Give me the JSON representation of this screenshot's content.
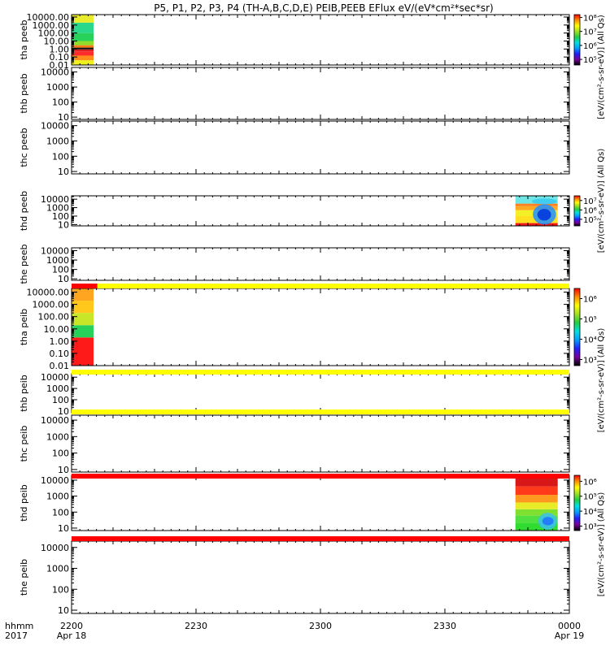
{
  "chart_data": {
    "type": "heatmap",
    "title": "P5, P1, P2, P3, P4 (TH-A,B,C,D,E) PEIB,PEEB EFlux eV/(eV*cm²*sec*sr)",
    "x_axis": {
      "row1_label": "hhmm",
      "row2_label": "2017",
      "range": [
        "2200 Apr 18",
        "0000 Apr 19"
      ],
      "ticks": [
        {
          "value": 0,
          "label": "2200",
          "sublabel": "Apr 18"
        },
        {
          "value": 30,
          "label": "2230",
          "sublabel": ""
        },
        {
          "value": 60,
          "label": "2300",
          "sublabel": ""
        },
        {
          "value": 90,
          "label": "2330",
          "sublabel": ""
        },
        {
          "value": 120,
          "label": "0000",
          "sublabel": "Apr 19"
        }
      ]
    },
    "panels": [
      {
        "label": "tha peeb",
        "scale": "log",
        "ylim": [
          0.01,
          20000
        ],
        "y_ticks": [
          "10000.00",
          "1000.00",
          "100.00",
          "10.00",
          "1.00",
          "0.10",
          "0.01"
        ],
        "data": [
          {
            "t0": 0.1,
            "t1": 5.3,
            "bands": [
              {
                "lo": 0.01,
                "hi": 0.04,
                "c": "#f0f020"
              },
              {
                "lo": 0.04,
                "hi": 0.15,
                "c": "#ff8c1a"
              },
              {
                "lo": 0.15,
                "hi": 0.5,
                "c": "#ff2a2a"
              },
              {
                "lo": 0.5,
                "hi": 0.9,
                "c": "#e02020"
              },
              {
                "lo": 0.9,
                "hi": 1.5,
                "c": "#111111"
              },
              {
                "lo": 1.5,
                "hi": 3,
                "c": "#ff7a18"
              },
              {
                "lo": 3,
                "hi": 10,
                "c": "#8fdc2a"
              },
              {
                "lo": 10,
                "hi": 100,
                "c": "#28d25a"
              },
              {
                "lo": 100,
                "hi": 2000,
                "c": "#2ad88c"
              },
              {
                "lo": 2000,
                "hi": 20000,
                "c": "#e8ec2a"
              }
            ]
          }
        ]
      },
      {
        "label": "thb peeb",
        "scale": "log",
        "ylim": [
          7,
          20000
        ],
        "y_ticks": [
          "10000",
          "1000",
          "100",
          "10"
        ],
        "data": []
      },
      {
        "label": "thc peeb",
        "scale": "log",
        "ylim": [
          7,
          20000
        ],
        "y_ticks": [
          "10000",
          "1000",
          "100",
          "10"
        ],
        "data": []
      },
      {
        "label": "thd peeb",
        "scale": "log",
        "ylim": [
          7,
          25000
        ],
        "y_ticks": [
          "10000",
          "1000",
          "100",
          "10"
        ],
        "data": [
          {
            "t0": 107.0,
            "t1": 117.2,
            "bands": [
              {
                "lo": 7,
                "hi": 15,
                "c": "#f21818"
              },
              {
                "lo": 15,
                "hi": 100,
                "c": "#ffe020"
              },
              {
                "lo": 100,
                "hi": 500,
                "c": "#f4f028"
              },
              {
                "lo": 500,
                "hi": 1500,
                "c": "#ffaa20"
              },
              {
                "lo": 1500,
                "hi": 3000,
                "c": "#ff8020"
              },
              {
                "lo": 3000,
                "hi": 25000,
                "c": "#6ee6e6"
              }
            ],
            "blobs": [
              {
                "t0": 111.2,
                "t1": 116.8,
                "lo": 10,
                "hi": 2500,
                "c": "#1e90ff"
              },
              {
                "t0": 112.3,
                "t1": 115.6,
                "lo": 30,
                "hi": 700,
                "c": "#0033dd"
              },
              {
                "t0": 111.0,
                "t1": 117.0,
                "lo": 2500,
                "hi": 12000,
                "c": "#38c8f0"
              }
            ]
          }
        ]
      },
      {
        "label": "the peeb",
        "scale": "log",
        "ylim": [
          7,
          20000
        ],
        "y_ticks": [
          "10000",
          "1000",
          "100",
          "10"
        ],
        "data": []
      },
      {
        "label": "tha peib",
        "scale": "log",
        "ylim": [
          0.01,
          20000
        ],
        "y_ticks": [
          "10000.00",
          "1000.00",
          "100.00",
          "10.00",
          "1.00",
          "0.10",
          "0.01"
        ],
        "data": [
          {
            "t0": 0.1,
            "t1": 5.3,
            "bands": [
              {
                "lo": 0.01,
                "hi": 2,
                "c": "#ff1a1a"
              },
              {
                "lo": 2,
                "hi": 20,
                "c": "#28d25a"
              },
              {
                "lo": 20,
                "hi": 200,
                "c": "#c8e628"
              },
              {
                "lo": 200,
                "hi": 2000,
                "c": "#ffc81a"
              },
              {
                "lo": 2000,
                "hi": 20000,
                "c": "#ffa520"
              }
            ]
          }
        ]
      },
      {
        "label": "thb peib",
        "scale": "log",
        "ylim": [
          7,
          20000
        ],
        "y_ticks": [
          "10000",
          "1000",
          "100",
          "10"
        ],
        "data": []
      },
      {
        "label": "thc peib",
        "scale": "log",
        "ylim": [
          7,
          20000
        ],
        "y_ticks": [
          "10000",
          "1000",
          "100",
          "10"
        ],
        "data": []
      },
      {
        "label": "thd peib",
        "scale": "log",
        "ylim": [
          7,
          20000
        ],
        "y_ticks": [
          "10000",
          "1000",
          "100",
          "10"
        ],
        "data": [
          {
            "t0": 107.0,
            "t1": 117.2,
            "bands": [
              {
                "lo": 7,
                "hi": 20,
                "c": "#30dc30"
              },
              {
                "lo": 20,
                "hi": 60,
                "c": "#50e040"
              },
              {
                "lo": 60,
                "hi": 150,
                "c": "#80e030"
              },
              {
                "lo": 150,
                "hi": 400,
                "c": "#e8ec28"
              },
              {
                "lo": 400,
                "hi": 1200,
                "c": "#ff9a20"
              },
              {
                "lo": 1200,
                "hi": 4000,
                "c": "#ff3a1a"
              },
              {
                "lo": 4000,
                "hi": 20000,
                "c": "#d81818"
              }
            ],
            "blobs": [
              {
                "t0": 112.5,
                "t1": 117.0,
                "lo": 8,
                "hi": 90,
                "c": "#38c0f0"
              },
              {
                "t0": 113.5,
                "t1": 116.2,
                "lo": 15,
                "hi": 50,
                "c": "#2070ff"
              }
            ]
          }
        ]
      },
      {
        "label": "the peib",
        "scale": "log",
        "ylim": [
          7,
          20000
        ],
        "y_ticks": [
          "10000",
          "1000",
          "100",
          "10"
        ],
        "data": []
      }
    ],
    "separators": [
      {
        "after": 4,
        "color": "#ffff00",
        "red_t0": 0,
        "red_t1": 6.2
      },
      {
        "after": 5,
        "color": "#ffff00"
      },
      {
        "after": 6,
        "color": "#ffff00"
      },
      {
        "after": 7,
        "color": "#ff0000"
      },
      {
        "after": 8,
        "color": "#ff0000"
      }
    ],
    "colorbars": [
      {
        "panel": 0,
        "ticks": [
          {
            "p": 8,
            "label": "10⁸"
          },
          {
            "p": 7,
            "label": "10⁷"
          },
          {
            "p": 6,
            "label": "10⁶"
          },
          {
            "p": 5,
            "label": "10⁵"
          }
        ],
        "pmin": 4.6,
        "pmax": 8.2,
        "label": "[eV/(cm²-s-sr-eV)] (All Qs)",
        "label_span": [
          0,
          1
        ]
      },
      {
        "panel": 3,
        "ticks": [
          {
            "p": 7,
            "label": "10⁷"
          },
          {
            "p": 6,
            "label": "10⁶"
          },
          {
            "p": 5,
            "label": "10⁵"
          }
        ],
        "pmin": 4.3,
        "pmax": 7.5,
        "label": "[eV/(cm²-s-sr-eV)] (All Qs)",
        "label_span": [
          2,
          4
        ]
      },
      {
        "panel": 5,
        "ticks": [
          {
            "p": 6,
            "label": "10⁶"
          },
          {
            "p": 5,
            "label": "10⁵"
          },
          {
            "p": 4,
            "label": "10⁴"
          },
          {
            "p": 3,
            "label": "10³"
          }
        ],
        "pmin": 2.7,
        "pmax": 6.5,
        "label": "[eV/(cm²-s-sr-eV)] (All Qs)",
        "label_span": [
          5,
          7
        ]
      },
      {
        "panel": 8,
        "ticks": [
          {
            "p": 6,
            "label": "10⁶"
          },
          {
            "p": 5,
            "label": "10⁵"
          },
          {
            "p": 4,
            "label": "10⁴"
          },
          {
            "p": 3,
            "label": "10³"
          }
        ],
        "pmin": 2.7,
        "pmax": 6.4,
        "label": "[eV/(cm²-s-sr-eV)] (All Qs)",
        "label_span": [
          8,
          9
        ]
      }
    ],
    "colorbar_stops": [
      "#000000",
      "#7a00a0",
      "#2020ff",
      "#00a0ff",
      "#00e0e0",
      "#20d040",
      "#a0e020",
      "#ffff00",
      "#ff9000",
      "#ff0000"
    ]
  }
}
